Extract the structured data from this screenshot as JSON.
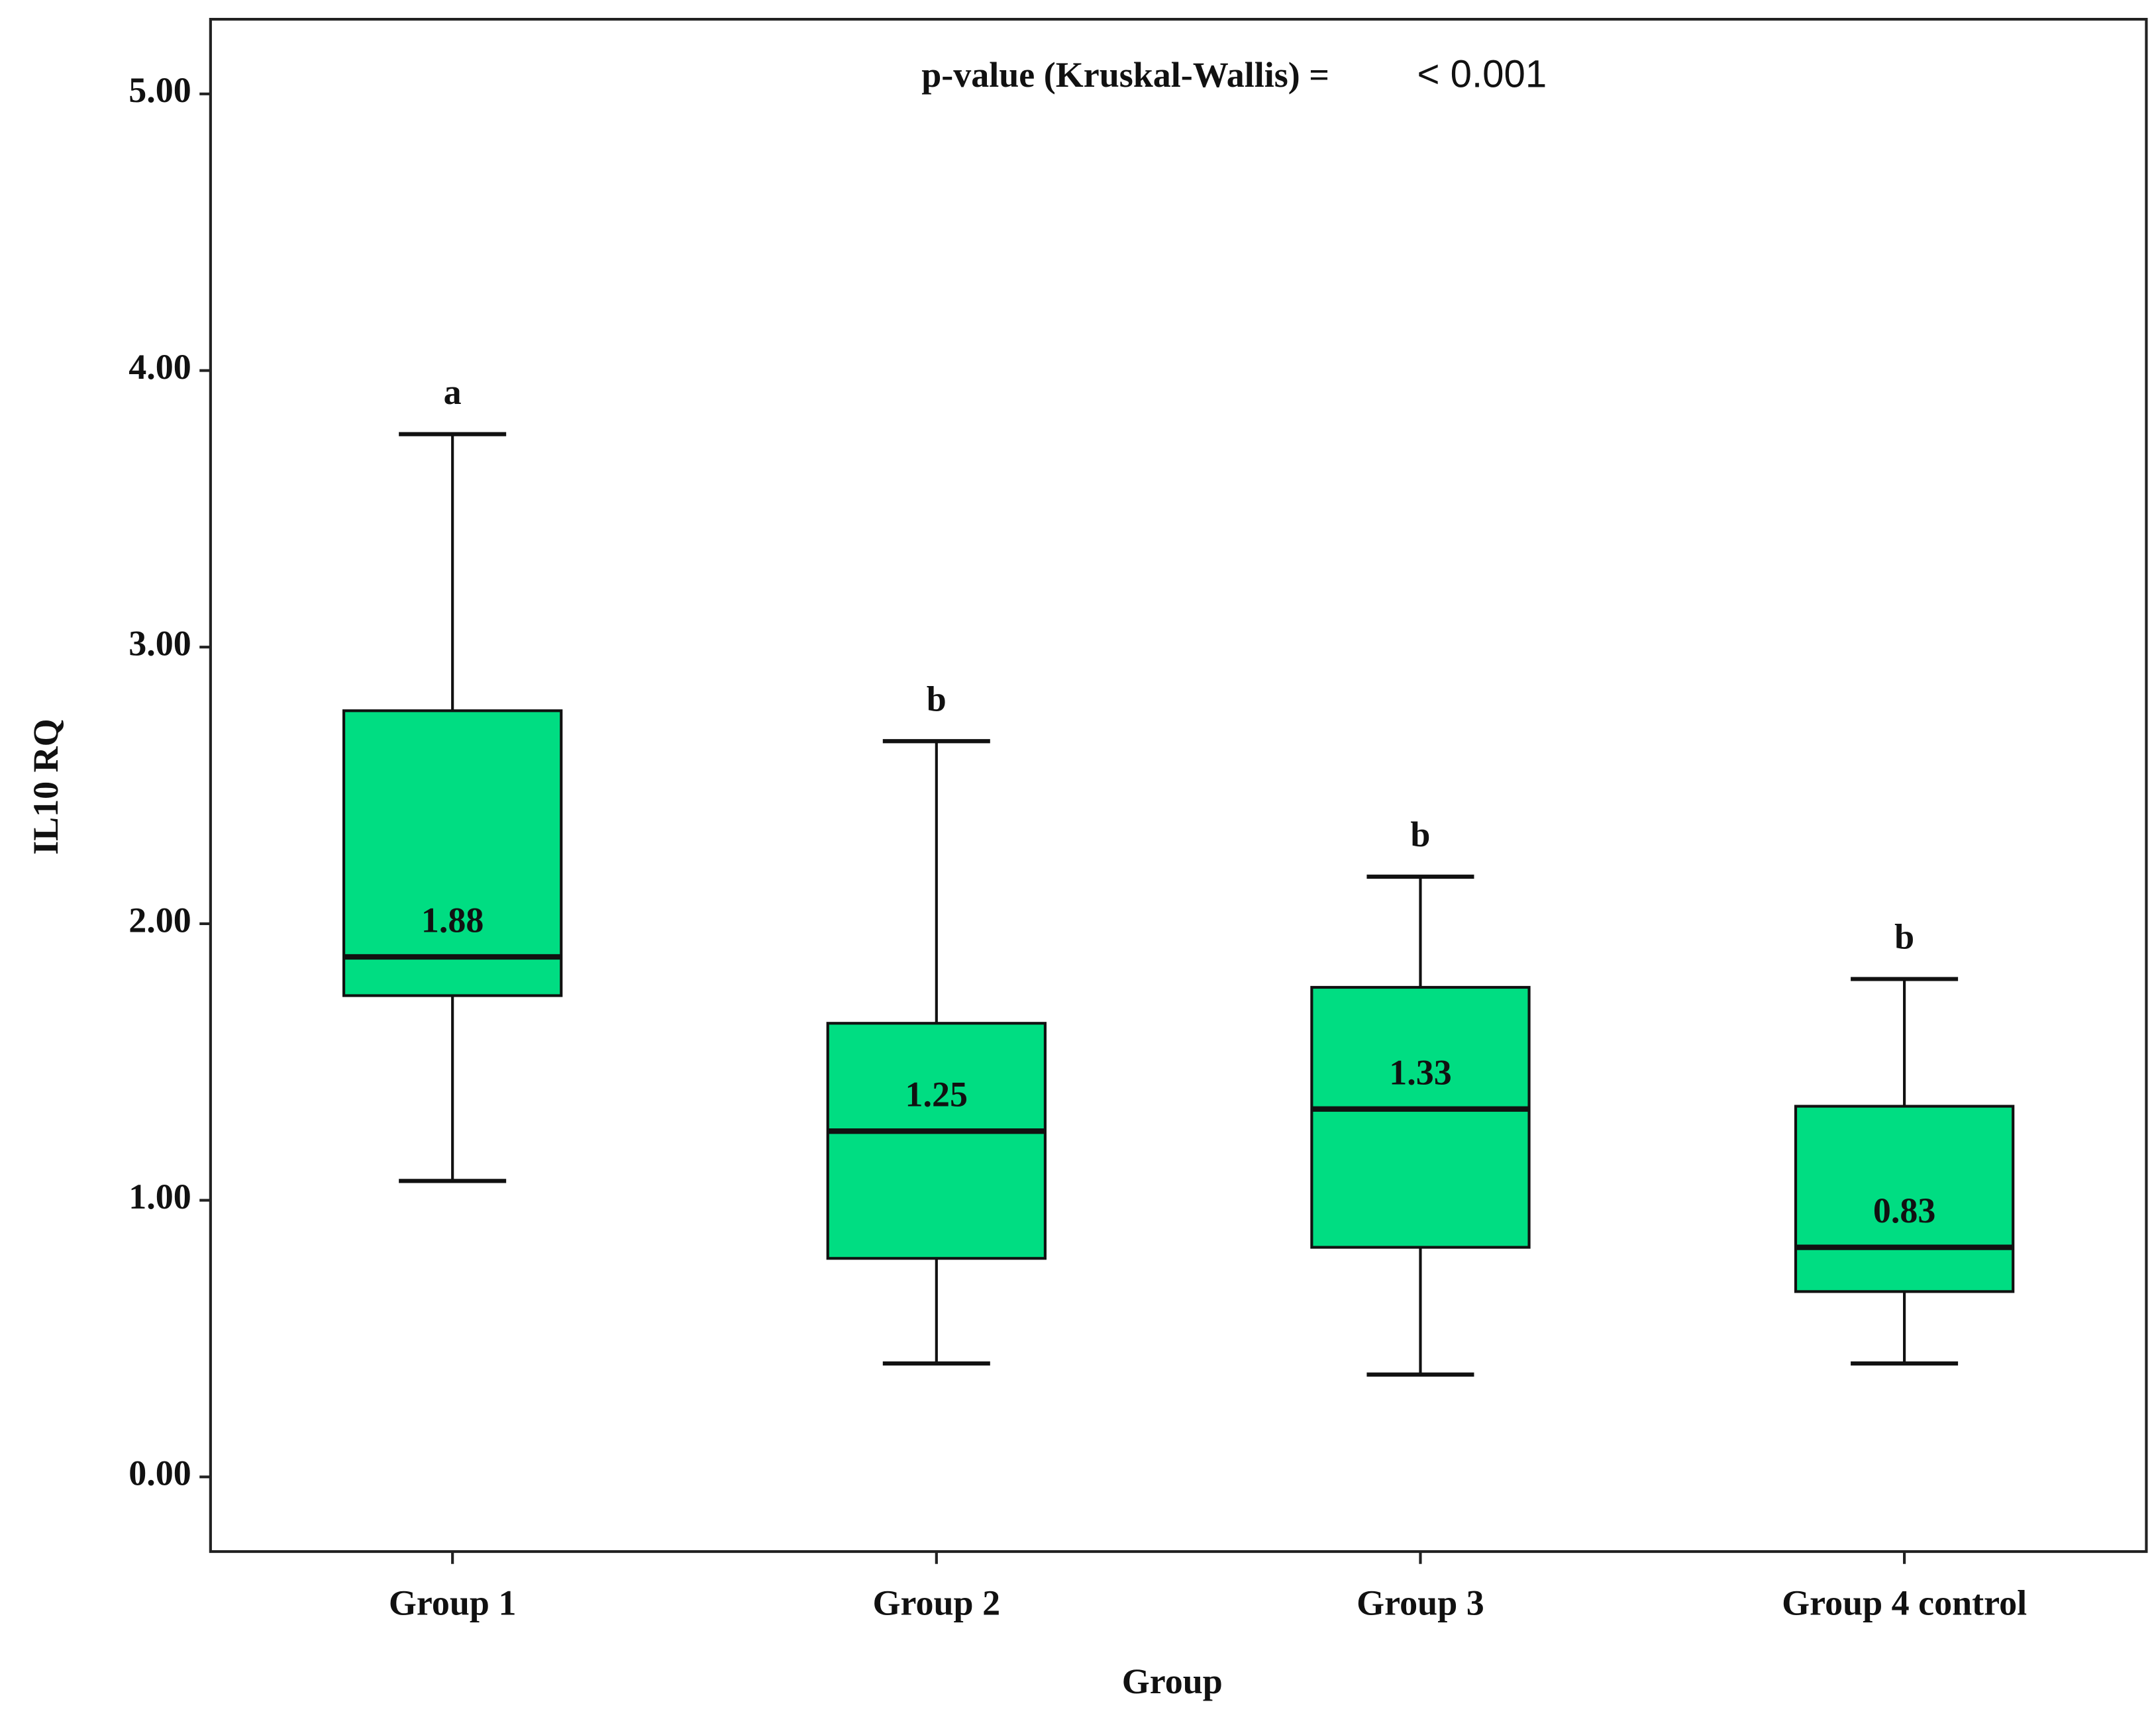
{
  "chart_data": {
    "type": "box",
    "annotation_label": "p-value (Kruskal-Wallis) =",
    "annotation_value": "< 0.001",
    "x_label": "Group",
    "y_label": "IL10 RQ",
    "categories": [
      "Group 1",
      "Group 2",
      "Group 3",
      "Group 4 control"
    ],
    "whisker_low": [
      1.07,
      0.41,
      0.37,
      0.41
    ],
    "q1": [
      1.74,
      0.79,
      0.83,
      0.67
    ],
    "median": [
      1.88,
      1.25,
      1.33,
      0.83
    ],
    "q3": [
      2.77,
      1.64,
      1.77,
      1.34
    ],
    "whisker_high": [
      3.77,
      2.66,
      2.17,
      1.8
    ],
    "letters": [
      "a",
      "b",
      "b",
      "b"
    ],
    "color": "#00dd82",
    "ylim": [
      -0.27,
      5.27
    ],
    "yticks": [
      {
        "value": 0,
        "label": "0.00"
      },
      {
        "value": 1,
        "label": "1.00"
      },
      {
        "value": 2,
        "label": "2.00"
      },
      {
        "value": 3,
        "label": "3.00"
      },
      {
        "value": 4,
        "label": "4.00"
      },
      {
        "value": 5,
        "label": "5.00"
      }
    ]
  }
}
